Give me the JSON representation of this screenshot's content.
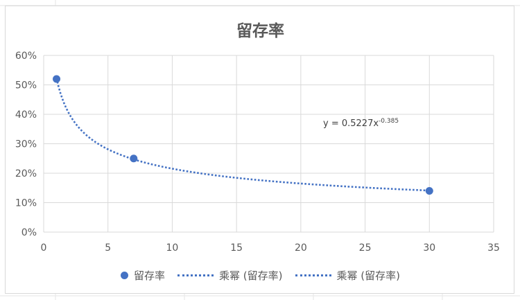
{
  "chart_data": {
    "type": "scatter",
    "title": "留存率",
    "xlim": [
      0,
      35
    ],
    "ylim": [
      0,
      0.6
    ],
    "x_ticks": [
      "0",
      "5",
      "10",
      "15",
      "20",
      "25",
      "30",
      "35"
    ],
    "y_ticks": [
      "0%",
      "10%",
      "20%",
      "30%",
      "40%",
      "50%",
      "60%"
    ],
    "grid": true,
    "series": [
      {
        "name": "留存率",
        "x": [
          1,
          7,
          30
        ],
        "y": [
          0.52,
          0.25,
          0.14
        ]
      }
    ],
    "trendline": {
      "type": "power",
      "coefficient": 0.5227,
      "exponent": -0.385,
      "equation_text": "y = 0.5227x",
      "equation_exponent": "-0.385"
    },
    "legend": {
      "position": "bottom",
      "entries": [
        {
          "label": "留存率",
          "kind": "marker"
        },
        {
          "label": "乘幂 (留存率)",
          "kind": "dotted-line"
        },
        {
          "label": "乘幂 (留存率)",
          "kind": "dotted-line"
        }
      ]
    },
    "colors": {
      "series": "#4472c4",
      "grid": "#d9d9d9",
      "text": "#595959"
    }
  }
}
